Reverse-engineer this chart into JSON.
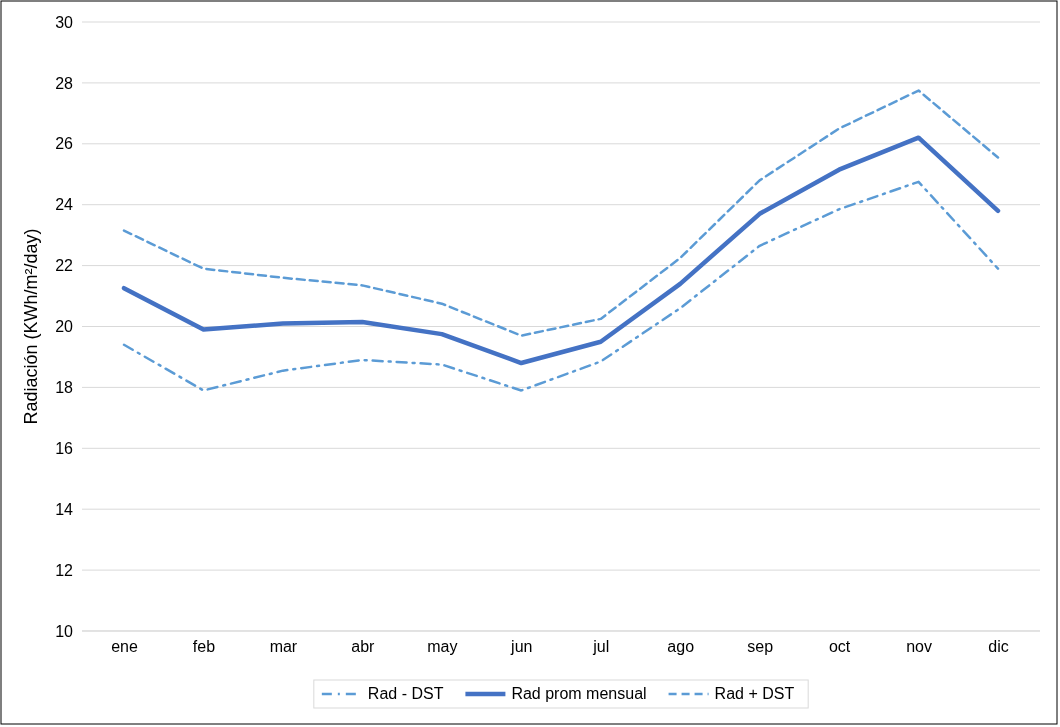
{
  "chart_data": {
    "type": "line",
    "ylabel": "Radiación (KWh/m²/day)",
    "categories": [
      "ene",
      "feb",
      "mar",
      "abr",
      "may",
      "jun",
      "jul",
      "ago",
      "sep",
      "oct",
      "nov",
      "dic"
    ],
    "series": [
      {
        "name": "Rad - DST",
        "color": "#5b9bd5",
        "line_style": "dashdot",
        "values": [
          19.4,
          17.9,
          18.55,
          18.9,
          18.75,
          17.9,
          18.85,
          20.6,
          22.65,
          23.85,
          24.75,
          21.9
        ]
      },
      {
        "name": "Rad prom mensual",
        "color": "#4472c4",
        "line_style": "solid",
        "values": [
          21.26,
          19.9,
          20.1,
          20.15,
          19.75,
          18.8,
          19.5,
          21.4,
          23.7,
          25.15,
          26.2,
          23.8
        ]
      },
      {
        "name": "Rad + DST",
        "color": "#5b9bd5",
        "line_style": "dashed",
        "values": [
          23.15,
          21.9,
          21.6,
          21.35,
          20.75,
          19.7,
          20.25,
          22.25,
          24.8,
          26.5,
          27.75,
          25.55
        ]
      }
    ],
    "ylim": [
      10,
      30
    ],
    "yticks": [
      10,
      12,
      14,
      16,
      18,
      20,
      22,
      24,
      26,
      28,
      30
    ],
    "grid": "y",
    "legend": "bottom",
    "marker": "none"
  }
}
